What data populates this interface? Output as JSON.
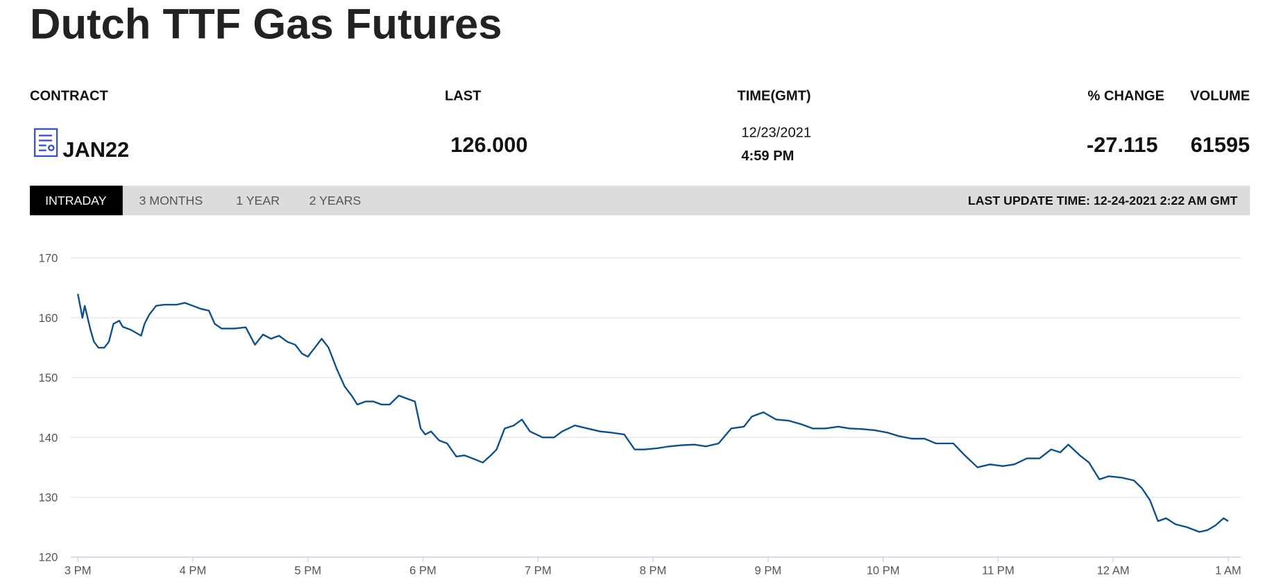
{
  "header": {
    "title": "Dutch TTF Gas Futures"
  },
  "quote": {
    "columns": [
      "CONTRACT",
      "LAST",
      "TIME(GMT)",
      "% CHANGE",
      "VOLUME"
    ],
    "contract": "JAN22",
    "last": "126.000",
    "date": "12/23/2021",
    "time": "4:59 PM",
    "change": -27.115,
    "volume": 61595
  },
  "tabs": [
    "INTRADAY",
    "3 MONTHS",
    "1 YEAR",
    "2 YEARS"
  ],
  "last_update": "LAST UPDATE TIME: 12-24-2021 2:22 AM GMT",
  "chart_data": {
    "type": "line",
    "color": "#0b4f8f",
    "grid": true,
    "xlim": [
      -0.06,
      10.11
    ],
    "ylim": [
      120,
      170
    ],
    "yticks": [
      120,
      130,
      140,
      150,
      160,
      170
    ],
    "xticks": [
      {
        "value": 0,
        "label": "3 PM"
      },
      {
        "value": 1,
        "label": "4 PM"
      },
      {
        "value": 2,
        "label": "5 PM"
      },
      {
        "value": 3,
        "label": "6 PM"
      },
      {
        "value": 4,
        "label": "7 PM"
      },
      {
        "value": 5,
        "label": "8 PM"
      },
      {
        "value": 6,
        "label": "9 PM"
      },
      {
        "value": 7,
        "label": "10 PM"
      },
      {
        "value": 8,
        "label": "11 PM"
      },
      {
        "value": 9,
        "label": "12 AM"
      },
      {
        "value": 10,
        "label": "1 AM"
      }
    ],
    "x": [
      0,
      0.04,
      0.06,
      0.11,
      0.14,
      0.18,
      0.23,
      0.27,
      0.31,
      0.36,
      0.39,
      0.46,
      0.55,
      0.58,
      0.62,
      0.68,
      0.75,
      0.86,
      0.93,
      1.0,
      1.07,
      1.14,
      1.19,
      1.25,
      1.36,
      1.46,
      1.54,
      1.61,
      1.68,
      1.75,
      1.82,
      1.89,
      1.95,
      2.0,
      2.06,
      2.12,
      2.18,
      2.25,
      2.32,
      2.38,
      2.43,
      2.5,
      2.57,
      2.64,
      2.71,
      2.79,
      2.86,
      2.93,
      2.98,
      3.02,
      3.07,
      3.14,
      3.21,
      3.29,
      3.36,
      3.43,
      3.52,
      3.59,
      3.64,
      3.71,
      3.79,
      3.86,
      3.93,
      4.04,
      4.14,
      4.21,
      4.32,
      4.43,
      4.54,
      4.64,
      4.75,
      4.84,
      4.93,
      5.04,
      5.14,
      5.25,
      5.36,
      5.46,
      5.57,
      5.68,
      5.79,
      5.86,
      5.96,
      6.07,
      6.18,
      6.29,
      6.39,
      6.5,
      6.61,
      6.71,
      6.82,
      6.93,
      7.04,
      7.14,
      7.25,
      7.36,
      7.46,
      7.61,
      7.71,
      7.82,
      7.93,
      8.04,
      8.14,
      8.25,
      8.36,
      8.46,
      8.54,
      8.61,
      8.71,
      8.79,
      8.88,
      8.96,
      9.07,
      9.18,
      9.25,
      9.32,
      9.39,
      9.46,
      9.54,
      9.64,
      9.75,
      9.82,
      9.89,
      9.96,
      10.0
    ],
    "values": [
      164,
      160,
      162,
      158,
      156,
      155,
      155,
      156,
      159,
      159.5,
      158.5,
      158,
      157,
      159,
      160.5,
      162,
      162.2,
      162.2,
      162.5,
      162,
      161.5,
      161.2,
      159,
      158.2,
      158.2,
      158.4,
      155.5,
      157.2,
      156.5,
      157,
      156,
      155.5,
      154,
      153.5,
      155,
      156.5,
      155,
      151.5,
      148.5,
      147,
      145.5,
      146,
      146,
      145.5,
      145.5,
      147,
      146.5,
      146,
      141.5,
      140.5,
      141,
      139.5,
      139,
      136.8,
      137,
      136.5,
      135.8,
      137,
      138,
      141.5,
      142,
      143,
      141,
      140,
      140,
      141,
      142,
      141.5,
      141,
      140.8,
      140.5,
      138,
      138,
      138.2,
      138.5,
      138.7,
      138.8,
      138.5,
      139,
      141.5,
      141.8,
      143.5,
      144.2,
      143,
      142.8,
      142.2,
      141.5,
      141.5,
      141.8,
      141.5,
      141.4,
      141.2,
      140.8,
      140.2,
      139.8,
      139.8,
      139,
      139,
      137,
      135,
      135.5,
      135.2,
      135.5,
      136.5,
      136.5,
      138,
      137.5,
      138.8,
      137,
      135.8,
      133,
      133.5,
      133.3,
      132.8,
      131.5,
      129.5,
      126,
      126.5,
      125.5,
      125,
      124.2,
      124.5,
      125.3,
      126.5,
      126
    ]
  }
}
